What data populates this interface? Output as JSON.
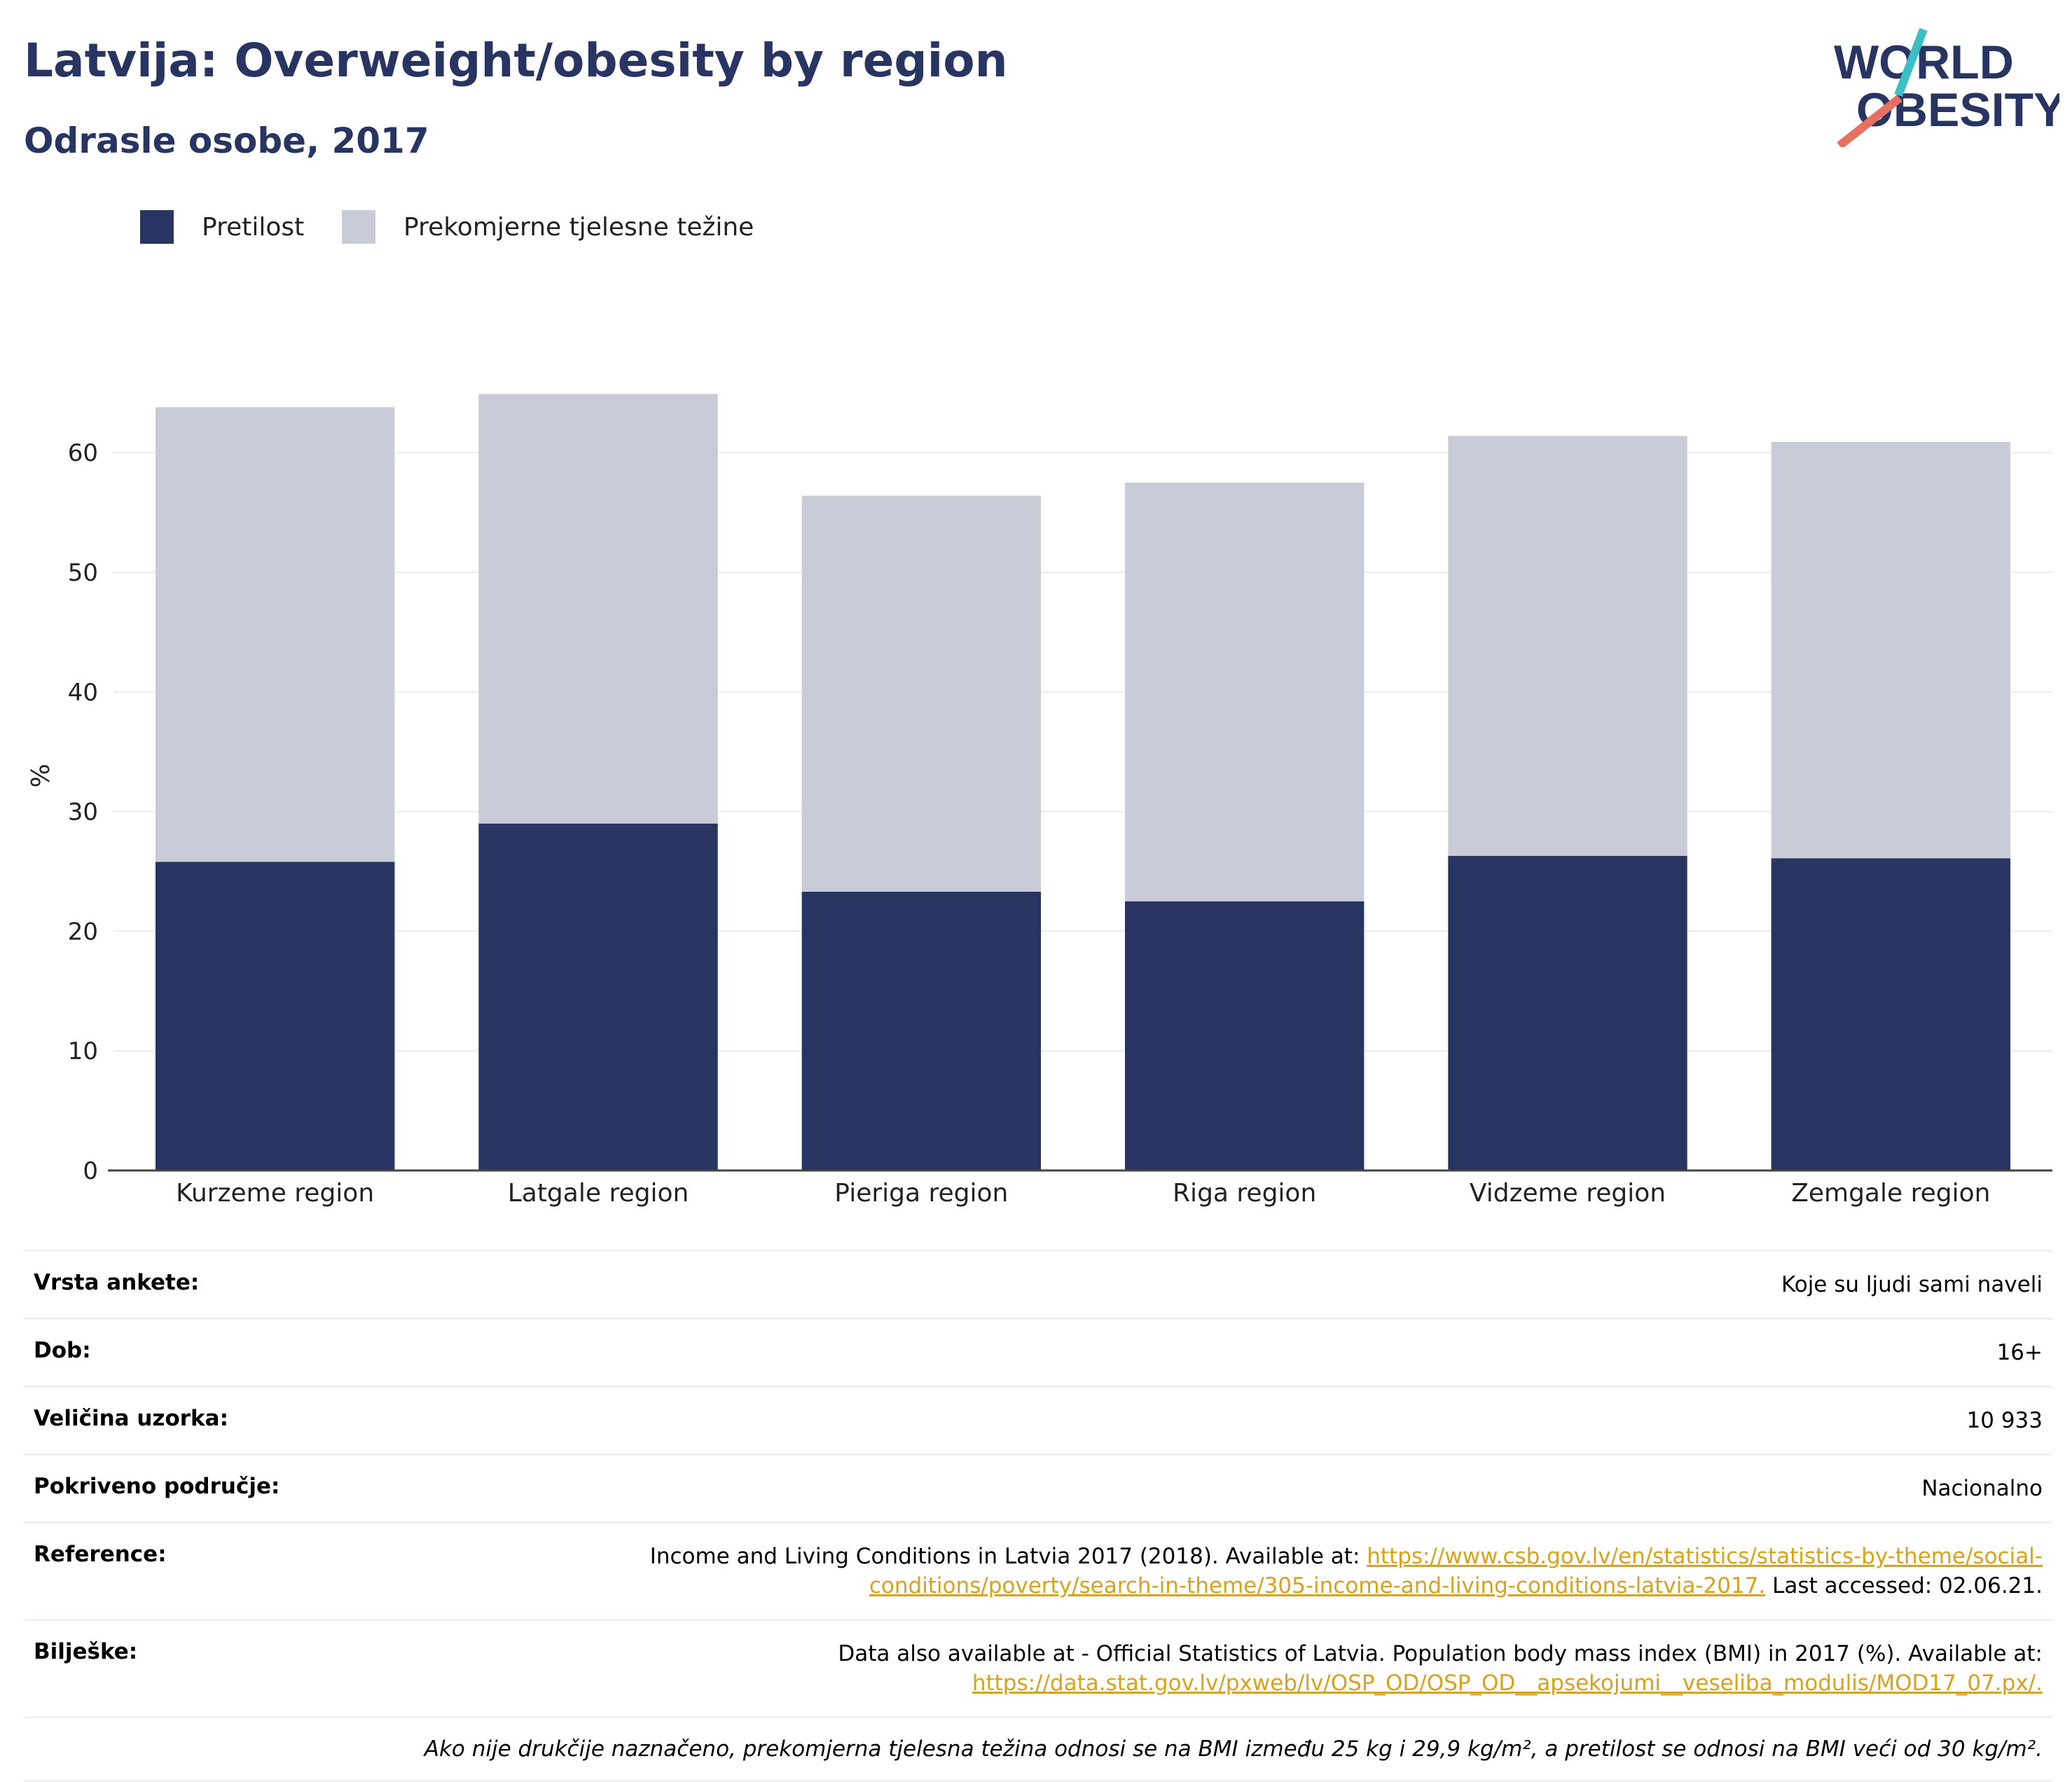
{
  "header": {
    "title": "Latvija: Overweight/obesity by region",
    "subtitle": "Odrasle osobe, 2017"
  },
  "logo": {
    "line1": "WORLD",
    "line2": "OBESITY",
    "icon": "world-obesity-logo"
  },
  "colors": {
    "obesity": "#283462",
    "overweight": "#c9cbd6",
    "accent_teal": "#3cbec5",
    "accent_coral": "#e8705f",
    "link": "#d8a21b"
  },
  "chart_data": {
    "type": "bar",
    "stacked": true,
    "categories": [
      "Kurzeme region",
      "Latgale region",
      "Pieriga region",
      "Riga region",
      "Vidzeme region",
      "Zemgale region"
    ],
    "series": [
      {
        "name": "Pretilost",
        "values": [
          25.8,
          29.0,
          23.3,
          22.5,
          26.3,
          26.1
        ]
      },
      {
        "name": "Prekomjerne tjelesne težine",
        "values": [
          38.0,
          35.9,
          33.1,
          35.0,
          35.1,
          34.8
        ]
      }
    ],
    "ylabel": "%",
    "ylim": [
      0,
      70
    ],
    "yticks": [
      0,
      10,
      20,
      30,
      40,
      50,
      60
    ],
    "grid": true,
    "legend": "top-left"
  },
  "meta": {
    "survey_label": "Vrsta ankete:",
    "survey_value": "Koje su ljudi sami naveli",
    "age_label": "Dob:",
    "age_value": "16+",
    "sample_label": "Veličina uzorka:",
    "sample_value": "10 933",
    "area_label": "Pokriveno područje:",
    "area_value": "Nacionalno",
    "ref_label": "Reference:",
    "ref_text": "Income and Living Conditions in Latvia 2017 (2018). Available at: ",
    "ref_link": "https://www.csb.gov.lv/en/statistics/statistics-by-theme/social-conditions/poverty/search-in-theme/305-income-and-living-conditions-latvia-2017.",
    "ref_after": " Last accessed: 02.06.21.",
    "notes_label": "Bilješke:",
    "notes_text": "Data also available at - Official Statistics of Latvia. Population body mass index (BMI) in 2017 (%). Available at: ",
    "notes_link": "https://data.stat.gov.lv/pxweb/lv/OSP_OD/OSP_OD__apsekojumi__veseliba_modulis/MOD17_07.px/.",
    "footnote": "Ako nije drukčije naznačeno, prekomjerna tjelesna težina odnosi se na BMI između 25 kg i 29,9 kg/m², a pretilost se odnosi na BMI veći od 30 kg/m²."
  }
}
